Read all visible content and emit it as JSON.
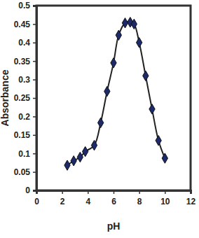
{
  "chart_data": {
    "type": "line",
    "xlabel": "pH",
    "ylabel": "Absorbance",
    "x": [
      2.4,
      2.9,
      3.4,
      3.8,
      4.5,
      5.0,
      5.5,
      6.0,
      6.4,
      6.9,
      7.3,
      7.6,
      8.0,
      8.5,
      9.0,
      9.5,
      10.0
    ],
    "values": [
      0.068,
      0.08,
      0.09,
      0.105,
      0.122,
      0.183,
      0.268,
      0.345,
      0.42,
      0.453,
      0.455,
      0.45,
      0.4,
      0.31,
      0.22,
      0.135,
      0.087
    ],
    "color": "#1c2a6b",
    "marker": "diamond",
    "xlim": [
      0,
      12
    ],
    "xticks": [
      0,
      2,
      4,
      6,
      8,
      10,
      12
    ],
    "ylim": [
      0,
      0.5
    ],
    "yticks": [
      0,
      0.05,
      0.1,
      0.15,
      0.2,
      0.25,
      0.3,
      0.35,
      0.4,
      0.45,
      0.5
    ],
    "grid": false
  }
}
